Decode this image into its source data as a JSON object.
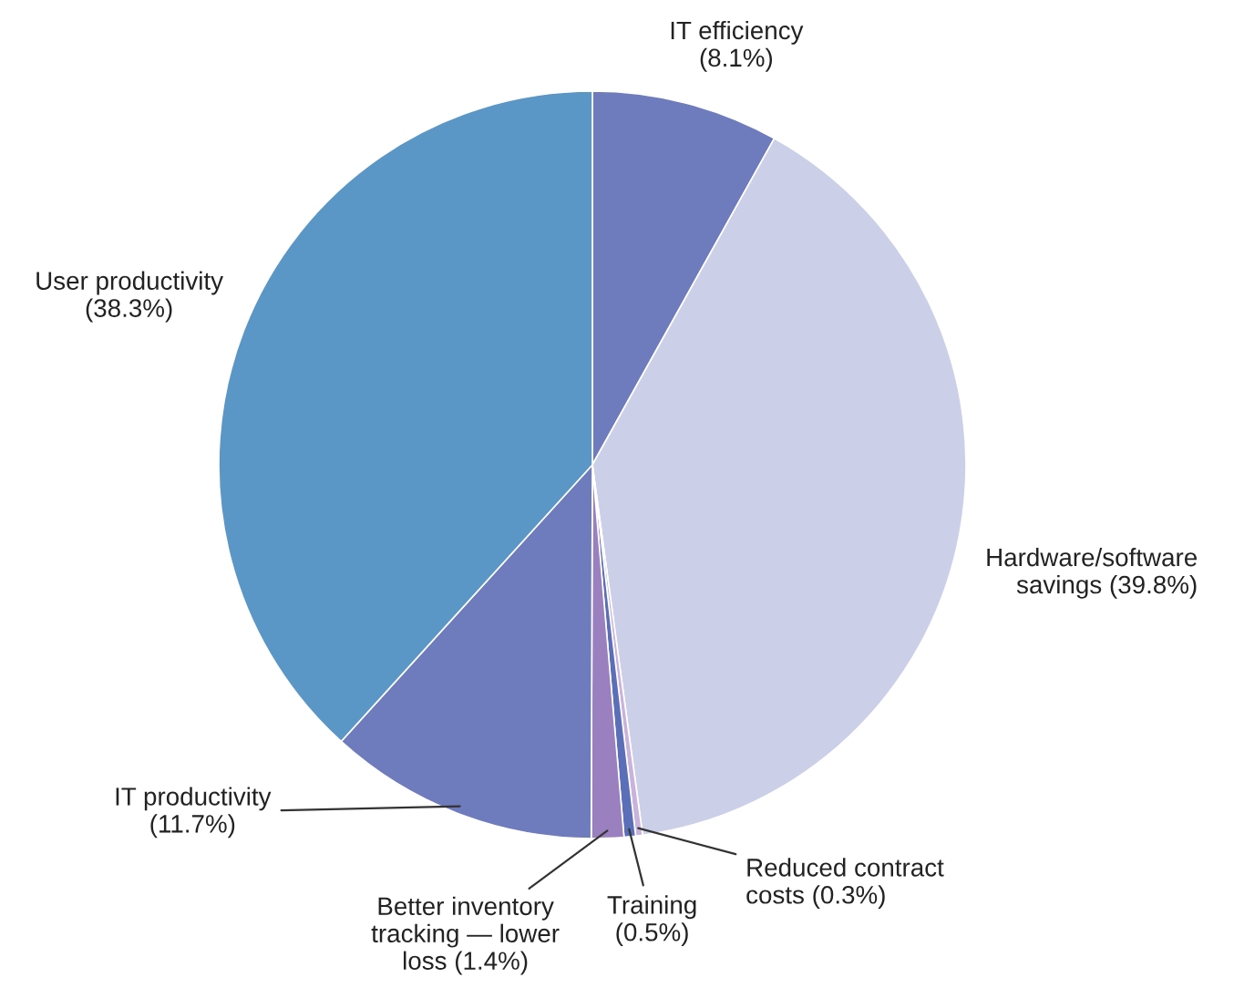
{
  "chart_data": {
    "type": "pie",
    "categories": [
      "IT efficiency",
      "Hardware/software\nsavings",
      "Reduced contract\ncosts",
      "Training",
      "Better inventory\ntracking — lower\nloss",
      "IT productivity",
      "User productivity"
    ],
    "values": [
      8.1,
      39.8,
      0.3,
      0.5,
      1.4,
      11.7,
      38.3
    ],
    "value_labels": [
      "(8.1%)",
      "(39.8%)",
      "(0.3%)",
      "(0.5%)",
      "(1.4%)",
      "(11.7%)",
      "(38.3%)"
    ],
    "colors": [
      "#6e7bbd",
      "#cbcfe8",
      "#c9b3dc",
      "#5a6fb8",
      "#9b80c0",
      "#6e7bbd",
      "#5a96c6"
    ]
  }
}
